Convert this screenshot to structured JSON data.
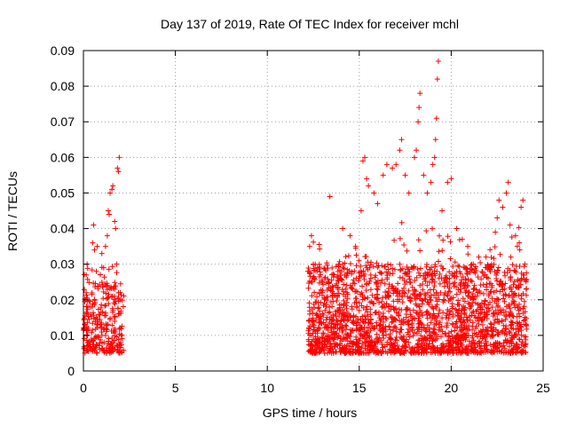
{
  "chart_data": {
    "type": "scatter",
    "title": "Day 137 of 2019, Rate Of TEC Index for receiver mchl",
    "xlabel": "GPS time / hours",
    "ylabel": "ROTI / TECUs",
    "xlim": [
      0,
      25
    ],
    "ylim": [
      0,
      0.09
    ],
    "x_ticks": [
      0,
      5,
      10,
      15,
      20,
      25
    ],
    "x_tick_labels": [
      "0",
      "5",
      "10",
      "15",
      "20",
      "25"
    ],
    "y_ticks": [
      0,
      0.01,
      0.02,
      0.03,
      0.04,
      0.05,
      0.06,
      0.07,
      0.08,
      0.09
    ],
    "y_tick_labels": [
      "0",
      "0.01",
      "0.02",
      "0.03",
      "0.04",
      "0.05",
      "0.06",
      "0.07",
      "0.08",
      "0.09"
    ],
    "grid": true,
    "marker": "+",
    "color": "#ff0000",
    "series": [
      {
        "name": "ROTI",
        "segments": [
          {
            "x_range": [
              0.0,
              2.2
            ],
            "count": 280,
            "typical_range": [
              0.005,
              0.025
            ],
            "points": [
              [
                0.05,
                0.012
              ],
              [
                0.1,
                0.02
              ],
              [
                0.15,
                0.027
              ],
              [
                0.2,
                0.03
              ],
              [
                0.25,
                0.018
              ],
              [
                0.3,
                0.008
              ],
              [
                0.5,
                0.036
              ],
              [
                0.55,
                0.041
              ],
              [
                0.6,
                0.034
              ],
              [
                0.7,
                0.028
              ],
              [
                0.75,
                0.035
              ],
              [
                1.0,
                0.033
              ],
              [
                1.1,
                0.029
              ],
              [
                1.2,
                0.035
              ],
              [
                1.3,
                0.038
              ],
              [
                1.35,
                0.045
              ],
              [
                1.4,
                0.044
              ],
              [
                1.45,
                0.05
              ],
              [
                1.55,
                0.051
              ],
              [
                1.6,
                0.052
              ],
              [
                1.7,
                0.042
              ],
              [
                1.75,
                0.04
              ],
              [
                1.8,
                0.03
              ],
              [
                1.85,
                0.057
              ],
              [
                1.9,
                0.056
              ],
              [
                1.95,
                0.06
              ],
              [
                2.0,
                0.022
              ],
              [
                2.1,
                0.01
              ]
            ]
          },
          {
            "x_range": [
              12.2,
              24.1
            ],
            "count": 2100,
            "typical_range": [
              0.005,
              0.03
            ],
            "points": [
              [
                12.3,
                0.035
              ],
              [
                12.4,
                0.038
              ],
              [
                12.5,
                0.03
              ],
              [
                12.7,
                0.028
              ],
              [
                13.0,
                0.025
              ],
              [
                13.4,
                0.049
              ],
              [
                13.9,
                0.03
              ],
              [
                14.1,
                0.04
              ],
              [
                14.5,
                0.038
              ],
              [
                14.8,
                0.035
              ],
              [
                15.1,
                0.045
              ],
              [
                15.2,
                0.059
              ],
              [
                15.3,
                0.06
              ],
              [
                15.4,
                0.054
              ],
              [
                15.5,
                0.052
              ],
              [
                15.8,
                0.05
              ],
              [
                16.0,
                0.047
              ],
              [
                16.3,
                0.055
              ],
              [
                16.5,
                0.058
              ],
              [
                16.8,
                0.057
              ],
              [
                17.0,
                0.058
              ],
              [
                17.2,
                0.062
              ],
              [
                17.3,
                0.065
              ],
              [
                17.5,
                0.055
              ],
              [
                17.7,
                0.05
              ],
              [
                18.0,
                0.06
              ],
              [
                18.1,
                0.062
              ],
              [
                18.2,
                0.07
              ],
              [
                18.25,
                0.074
              ],
              [
                18.3,
                0.078
              ],
              [
                18.5,
                0.055
              ],
              [
                18.7,
                0.05
              ],
              [
                18.9,
                0.053
              ],
              [
                19.0,
                0.058
              ],
              [
                19.1,
                0.06
              ],
              [
                19.15,
                0.065
              ],
              [
                19.2,
                0.071
              ],
              [
                19.25,
                0.082
              ],
              [
                19.3,
                0.087
              ],
              [
                19.5,
                0.045
              ],
              [
                19.8,
                0.053
              ],
              [
                20.0,
                0.054
              ],
              [
                20.3,
                0.04
              ],
              [
                20.6,
                0.037
              ],
              [
                20.9,
                0.035
              ],
              [
                21.2,
                0.03
              ],
              [
                21.5,
                0.032
              ],
              [
                21.9,
                0.029
              ],
              [
                22.2,
                0.03
              ],
              [
                22.4,
                0.039
              ],
              [
                22.5,
                0.043
              ],
              [
                22.6,
                0.048
              ],
              [
                22.8,
                0.046
              ],
              [
                23.0,
                0.05
              ],
              [
                23.1,
                0.053
              ],
              [
                23.2,
                0.041
              ],
              [
                23.5,
                0.038
              ],
              [
                23.7,
                0.036
              ],
              [
                23.8,
                0.046
              ],
              [
                23.9,
                0.048
              ],
              [
                24.0,
                0.03
              ]
            ]
          }
        ]
      }
    ]
  }
}
